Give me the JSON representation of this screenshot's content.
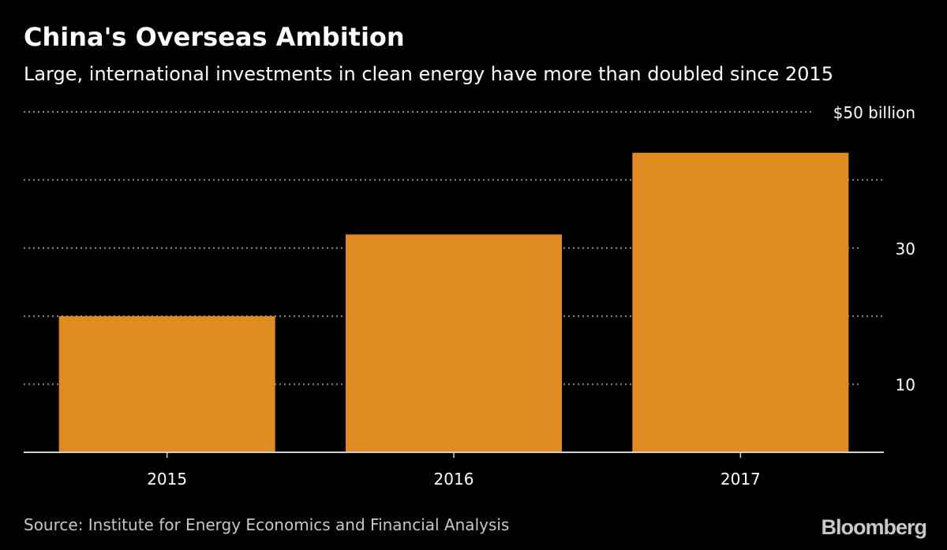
{
  "header": {
    "title": "China's Overseas Ambition",
    "subtitle": "Large, international investments in clean energy have more than doubled since 2015"
  },
  "footer": {
    "source": "Source: Institute for Energy Economics and Financial Analysis",
    "brand": "Bloomberg"
  },
  "colors": {
    "background": "#000000",
    "bar": "#E08A22",
    "grid": "#8a8a8a",
    "axis": "#d0d0d0",
    "text": "#ffffff",
    "muted": "#c8c8c8"
  },
  "chart_data": {
    "type": "bar",
    "title": "China's Overseas Ambition",
    "subtitle": "Large, international investments in clean energy have more than doubled since 2015",
    "categories": [
      "2015",
      "2016",
      "2017"
    ],
    "values": [
      20,
      32,
      44
    ],
    "xlabel": "",
    "ylabel": "",
    "ylim": [
      0,
      50
    ],
    "gridlines": [
      10,
      20,
      30,
      40,
      50
    ],
    "y_tick_labels": [
      {
        "value": 10,
        "label": "10"
      },
      {
        "value": 30,
        "label": "30"
      },
      {
        "value": 50,
        "label": "$50 billion"
      }
    ],
    "grid": true,
    "legend": "none"
  }
}
